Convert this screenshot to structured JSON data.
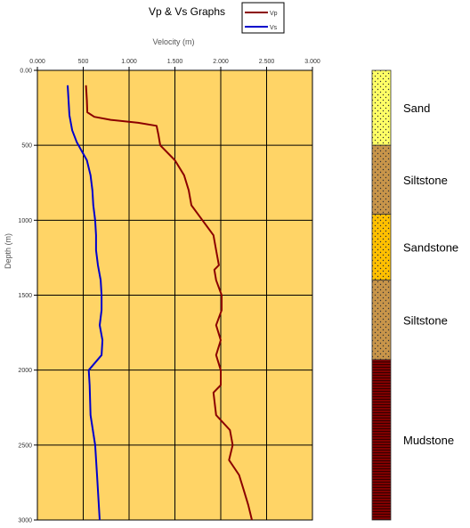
{
  "chart_data": {
    "type": "line",
    "title": "Vp & Vs Graphs",
    "xlabel": "Velocity (m)",
    "ylabel": "Depth (m)",
    "xlim": [
      0,
      3000
    ],
    "ylim": [
      0,
      3000
    ],
    "y_inverted": true,
    "x_ticks": [
      "0.000",
      "500",
      "1.000",
      "1.500",
      "2.000",
      "2.500",
      "3.000"
    ],
    "y_ticks": [
      "0.00",
      "500",
      "1000",
      "1500",
      "2000",
      "2500",
      "3000"
    ],
    "grid": true,
    "plot_background": "#FFD466",
    "legend_position": "top-right",
    "series": [
      {
        "name": "Vp",
        "color": "#8B0000",
        "points": [
          [
            530,
            100
          ],
          [
            540,
            200
          ],
          [
            545,
            280
          ],
          [
            620,
            310
          ],
          [
            800,
            330
          ],
          [
            1100,
            350
          ],
          [
            1300,
            370
          ],
          [
            1320,
            430
          ],
          [
            1340,
            500
          ],
          [
            1500,
            600
          ],
          [
            1600,
            700
          ],
          [
            1650,
            800
          ],
          [
            1680,
            900
          ],
          [
            1800,
            1000
          ],
          [
            1920,
            1100
          ],
          [
            1950,
            1200
          ],
          [
            1980,
            1300
          ],
          [
            1930,
            1330
          ],
          [
            1950,
            1400
          ],
          [
            2010,
            1500
          ],
          [
            2010,
            1600
          ],
          [
            1950,
            1700
          ],
          [
            2000,
            1800
          ],
          [
            1950,
            1900
          ],
          [
            2000,
            2000
          ],
          [
            2000,
            2100
          ],
          [
            1920,
            2150
          ],
          [
            1950,
            2300
          ],
          [
            2100,
            2400
          ],
          [
            2130,
            2500
          ],
          [
            2090,
            2600
          ],
          [
            2200,
            2700
          ],
          [
            2250,
            2800
          ],
          [
            2300,
            2900
          ],
          [
            2340,
            3000
          ]
        ]
      },
      {
        "name": "Vs",
        "color": "#0000CC",
        "points": [
          [
            330,
            100
          ],
          [
            340,
            200
          ],
          [
            350,
            300
          ],
          [
            380,
            400
          ],
          [
            430,
            480
          ],
          [
            540,
            600
          ],
          [
            580,
            700
          ],
          [
            600,
            800
          ],
          [
            610,
            900
          ],
          [
            630,
            1000
          ],
          [
            640,
            1100
          ],
          [
            640,
            1200
          ],
          [
            660,
            1300
          ],
          [
            690,
            1400
          ],
          [
            700,
            1500
          ],
          [
            700,
            1600
          ],
          [
            680,
            1700
          ],
          [
            710,
            1800
          ],
          [
            700,
            1900
          ],
          [
            560,
            2000
          ],
          [
            570,
            2100
          ],
          [
            580,
            2300
          ],
          [
            630,
            2500
          ],
          [
            650,
            2700
          ],
          [
            680,
            3000
          ]
        ]
      }
    ]
  },
  "lithology": [
    {
      "label": "Sand",
      "top": 0,
      "bottom": 500,
      "color": "#FFFF66",
      "pattern": "dots"
    },
    {
      "label": "Siltstone",
      "top": 500,
      "bottom": 960,
      "color": "#C8954A",
      "pattern": "dots"
    },
    {
      "label": "Sandstone",
      "top": 960,
      "bottom": 1400,
      "color": "#FFC000",
      "pattern": "dots"
    },
    {
      "label": "Siltstone",
      "top": 1400,
      "bottom": 1930,
      "color": "#C8954A",
      "pattern": "dots"
    },
    {
      "label": "Mudstone",
      "top": 1930,
      "bottom": 3000,
      "color": "#800000",
      "pattern": "lines"
    }
  ]
}
